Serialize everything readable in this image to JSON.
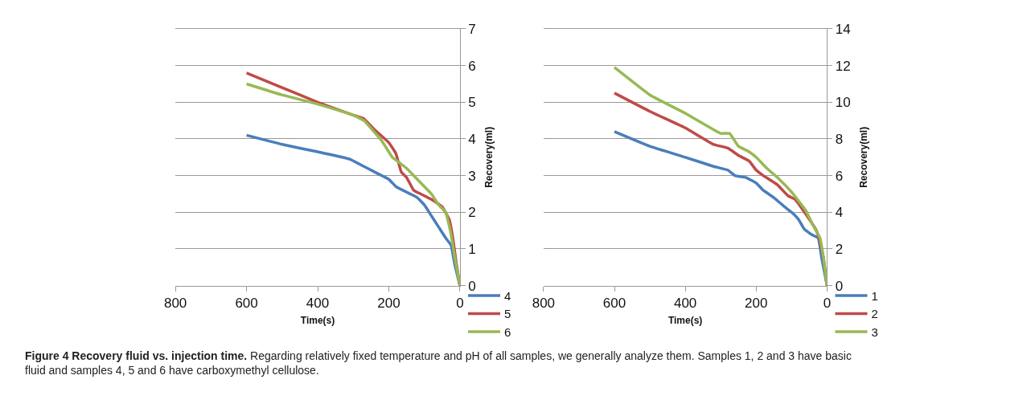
{
  "chart_data": [
    {
      "type": "line",
      "xlabel": "Time(s)",
      "ylabel": "Recovery(ml)",
      "xlim": [
        800,
        0
      ],
      "xticks": [
        800,
        600,
        400,
        200,
        0
      ],
      "ylim": [
        0,
        7
      ],
      "yticks": [
        0,
        1,
        2,
        3,
        4,
        5,
        6,
        7
      ],
      "grid": "y",
      "legend": "bottom right",
      "marker": "none",
      "line_style": "solid",
      "series": [
        {
          "name": "4",
          "color": "#4a7ebb",
          "x": [
            600,
            500,
            400,
            310,
            280,
            240,
            200,
            180,
            150,
            120,
            100,
            80,
            60,
            40,
            25,
            15,
            0
          ],
          "values": [
            4.1,
            3.85,
            3.65,
            3.45,
            3.3,
            3.1,
            2.9,
            2.7,
            2.55,
            2.4,
            2.2,
            1.9,
            1.6,
            1.3,
            1.1,
            0.6,
            0
          ]
        },
        {
          "name": "5",
          "color": "#be4b48",
          "x": [
            600,
            500,
            400,
            300,
            270,
            240,
            200,
            180,
            165,
            150,
            130,
            110,
            80,
            50,
            30,
            20,
            10,
            0
          ],
          "values": [
            5.8,
            5.4,
            5.0,
            4.65,
            4.55,
            4.25,
            3.9,
            3.6,
            3.1,
            2.95,
            2.6,
            2.5,
            2.35,
            2.15,
            1.8,
            1.3,
            0.6,
            0
          ]
        },
        {
          "name": "6",
          "color": "#98b954",
          "x": [
            600,
            500,
            400,
            300,
            270,
            220,
            190,
            170,
            150,
            120,
            80,
            60,
            40,
            25,
            15,
            0
          ],
          "values": [
            5.5,
            5.2,
            4.95,
            4.65,
            4.5,
            3.95,
            3.5,
            3.35,
            3.2,
            2.9,
            2.5,
            2.2,
            2.0,
            1.4,
            0.8,
            0
          ]
        }
      ],
      "annotations": [
        "Figure 4 Recovery fluid vs. injection time.",
        "Regarding relatively fixed temperature and pH of all samples, we generally analyze them. Samples 1, 2 and 3 have basic fluid and samples 4, 5 and 6 have carboxymethyl cellulose."
      ]
    },
    {
      "type": "line",
      "xlabel": "Time(s)",
      "ylabel": "Recovery(ml)",
      "xlim": [
        800,
        0
      ],
      "xticks": [
        800,
        600,
        400,
        200,
        0
      ],
      "ylim": [
        0,
        14
      ],
      "yticks": [
        0,
        2,
        4,
        6,
        8,
        10,
        12,
        14
      ],
      "grid": "y",
      "legend": "bottom right",
      "marker": "none",
      "line_style": "solid",
      "series": [
        {
          "name": "1",
          "color": "#4a7ebb",
          "x": [
            600,
            500,
            400,
            320,
            280,
            260,
            230,
            200,
            180,
            150,
            120,
            100,
            80,
            65,
            45,
            25,
            15,
            5,
            0
          ],
          "values": [
            8.4,
            7.6,
            7.0,
            6.5,
            6.3,
            6.0,
            5.9,
            5.6,
            5.2,
            4.8,
            4.3,
            4.0,
            3.6,
            3.1,
            2.8,
            2.6,
            1.5,
            0.5,
            0
          ]
        },
        {
          "name": "2",
          "color": "#be4b48",
          "x": [
            600,
            500,
            400,
            320,
            280,
            250,
            220,
            200,
            180,
            140,
            110,
            90,
            60,
            30,
            20,
            10,
            0
          ],
          "values": [
            10.5,
            9.5,
            8.6,
            7.7,
            7.5,
            7.1,
            6.8,
            6.3,
            6.0,
            5.5,
            4.9,
            4.7,
            3.9,
            3.0,
            2.4,
            1.5,
            0
          ]
        },
        {
          "name": "3",
          "color": "#98b954",
          "x": [
            600,
            500,
            400,
            320,
            300,
            275,
            250,
            220,
            200,
            170,
            140,
            100,
            60,
            40,
            20,
            10,
            0
          ],
          "values": [
            11.9,
            10.4,
            9.4,
            8.5,
            8.3,
            8.3,
            7.6,
            7.3,
            7.0,
            6.4,
            5.9,
            5.1,
            4.1,
            3.3,
            2.6,
            1.5,
            0
          ]
        }
      ]
    }
  ]
}
